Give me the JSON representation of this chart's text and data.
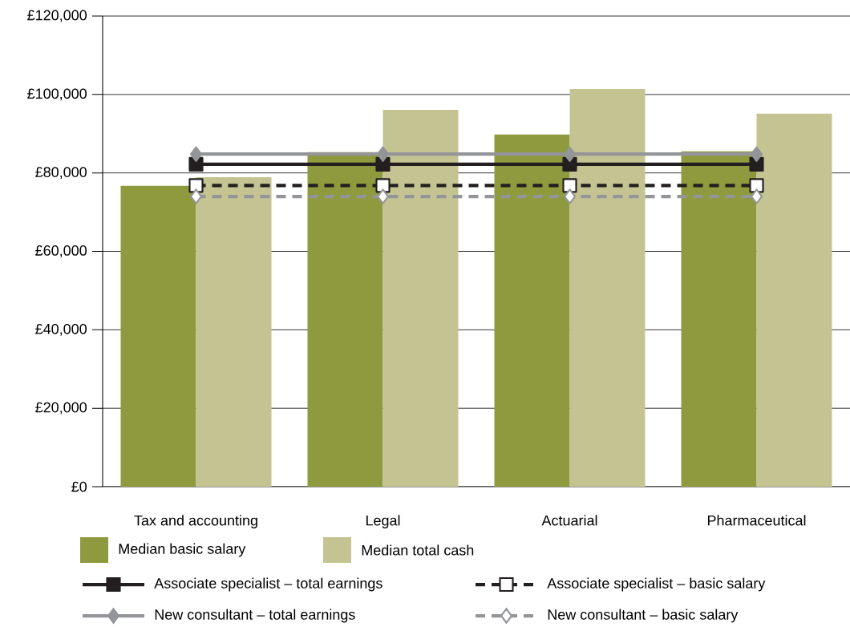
{
  "chart_data": {
    "type": "bar",
    "categories": [
      "Tax and accounting",
      "Legal",
      "Actuarial",
      "Pharmaceutical"
    ],
    "series": [
      {
        "name": "Median basic salary",
        "color": "#8f9a3e",
        "values": [
          76700,
          85300,
          89800,
          85500
        ]
      },
      {
        "name": "Median total cash",
        "color": "#c4c492",
        "values": [
          78900,
          96100,
          101400,
          95100
        ]
      },
      {
        "name": "Associate specialist – total earnings",
        "type": "line",
        "color": "#231f20",
        "marker": "square",
        "line_style": "solid",
        "values": [
          82200,
          82200,
          82200,
          82200
        ]
      },
      {
        "name": "Associate specialist – basic salary",
        "type": "line",
        "color": "#231f20",
        "marker": "square",
        "line_style": "dashed",
        "values": [
          76800,
          76800,
          76800,
          76800
        ]
      },
      {
        "name": "New consultant – total earnings",
        "type": "line",
        "color": "#939598",
        "marker": "diamond",
        "line_style": "solid",
        "values": [
          84800,
          84800,
          84800,
          84800
        ]
      },
      {
        "name": "New consultant – basic salary",
        "type": "line",
        "color": "#939598",
        "marker": "diamond",
        "line_style": "dashed",
        "values": [
          74000,
          74000,
          74000,
          74000
        ]
      }
    ],
    "ylim": [
      0,
      120000
    ],
    "yticks": [
      {
        "value": 0,
        "label": "£0"
      },
      {
        "value": 20000,
        "label": "£20,000"
      },
      {
        "value": 40000,
        "label": "£40,000"
      },
      {
        "value": 60000,
        "label": "£60,000"
      },
      {
        "value": 80000,
        "label": "£80,000"
      },
      {
        "value": 100000,
        "label": "£100,000"
      },
      {
        "value": 120000,
        "label": "£120,000"
      }
    ],
    "grid": "y",
    "legend": "bottom"
  }
}
